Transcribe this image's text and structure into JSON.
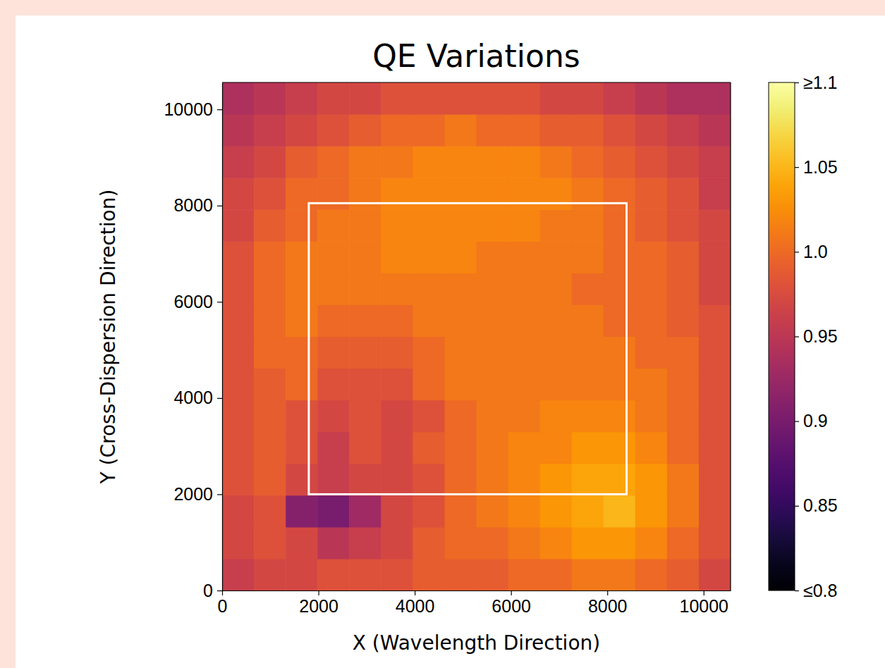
{
  "chart_data": {
    "type": "heatmap",
    "title": "QE Variations",
    "x_label": "X (Wavelength Direction)",
    "y_label": "Y (Cross-Dispersion Direction)",
    "xlim": [
      0,
      10560
    ],
    "ylim": [
      0,
      10560
    ],
    "xticks": [
      0,
      2000,
      4000,
      6000,
      8000,
      10000
    ],
    "yticks": [
      0,
      2000,
      4000,
      6000,
      8000,
      10000
    ],
    "x_edges": [
      0,
      660,
      1320,
      1980,
      2640,
      3300,
      3960,
      4620,
      5280,
      5940,
      6600,
      7260,
      7920,
      8580,
      9240,
      9900,
      10560
    ],
    "y_edges": [
      0,
      660,
      1320,
      1980,
      2640,
      3300,
      3960,
      4620,
      5280,
      5940,
      6600,
      7260,
      7920,
      8580,
      9240,
      9900,
      10560
    ],
    "z": [
      [
        0.96,
        0.97,
        0.97,
        0.98,
        0.98,
        0.98,
        0.99,
        0.99,
        0.99,
        1.0,
        1.0,
        1.01,
        1.01,
        1.0,
        0.99,
        0.97
      ],
      [
        0.97,
        0.98,
        0.97,
        0.95,
        0.96,
        0.97,
        0.99,
        1.0,
        1.0,
        1.01,
        1.02,
        1.03,
        1.03,
        1.02,
        1.0,
        0.98
      ],
      [
        0.97,
        0.98,
        0.91,
        0.9,
        0.93,
        0.97,
        0.98,
        1.0,
        1.01,
        1.02,
        1.03,
        1.04,
        1.05,
        1.03,
        1.01,
        0.98
      ],
      [
        0.98,
        0.99,
        0.97,
        0.96,
        0.97,
        0.97,
        0.98,
        1.0,
        1.01,
        1.02,
        1.03,
        1.04,
        1.04,
        1.03,
        1.01,
        0.98
      ],
      [
        0.98,
        0.99,
        0.98,
        0.96,
        0.98,
        0.97,
        0.99,
        1.0,
        1.01,
        1.02,
        1.02,
        1.03,
        1.03,
        1.02,
        1.0,
        0.98
      ],
      [
        0.98,
        0.99,
        0.98,
        0.97,
        0.98,
        0.97,
        0.98,
        1.0,
        1.01,
        1.01,
        1.02,
        1.02,
        1.02,
        1.01,
        1.0,
        0.98
      ],
      [
        0.98,
        0.99,
        1.0,
        0.98,
        0.98,
        0.98,
        1.0,
        1.01,
        1.01,
        1.01,
        1.01,
        1.01,
        1.01,
        1.01,
        1.0,
        0.98
      ],
      [
        0.98,
        1.0,
        1.0,
        0.99,
        0.99,
        0.99,
        1.0,
        1.01,
        1.01,
        1.01,
        1.01,
        1.01,
        1.01,
        1.0,
        1.0,
        0.98
      ],
      [
        0.98,
        1.0,
        1.01,
        1.0,
        1.0,
        1.0,
        1.01,
        1.01,
        1.01,
        1.01,
        1.01,
        1.01,
        1.0,
        1.0,
        0.99,
        0.98
      ],
      [
        0.98,
        1.0,
        1.01,
        1.01,
        1.01,
        1.01,
        1.01,
        1.01,
        1.01,
        1.01,
        1.01,
        1.0,
        1.0,
        1.0,
        0.99,
        0.97
      ],
      [
        0.98,
        1.0,
        1.01,
        1.01,
        1.01,
        1.02,
        1.02,
        1.02,
        1.01,
        1.01,
        1.01,
        1.01,
        1.0,
        1.0,
        0.99,
        0.97
      ],
      [
        0.97,
        0.99,
        1.0,
        1.01,
        1.01,
        1.02,
        1.02,
        1.02,
        1.02,
        1.02,
        1.01,
        1.01,
        1.0,
        0.99,
        0.98,
        0.97
      ],
      [
        0.97,
        0.98,
        1.0,
        1.0,
        1.01,
        1.02,
        1.02,
        1.02,
        1.02,
        1.02,
        1.02,
        1.01,
        1.0,
        0.99,
        0.98,
        0.96
      ],
      [
        0.96,
        0.97,
        0.99,
        1.0,
        1.01,
        1.01,
        1.02,
        1.02,
        1.02,
        1.02,
        1.01,
        1.0,
        0.99,
        0.98,
        0.97,
        0.96
      ],
      [
        0.95,
        0.96,
        0.97,
        0.98,
        0.99,
        1.0,
        1.0,
        1.01,
        1.0,
        1.0,
        0.99,
        0.99,
        0.98,
        0.97,
        0.96,
        0.95
      ],
      [
        0.94,
        0.95,
        0.96,
        0.97,
        0.97,
        0.98,
        0.98,
        0.98,
        0.98,
        0.98,
        0.97,
        0.97,
        0.96,
        0.95,
        0.94,
        0.94
      ]
    ],
    "region": {
      "x0": 1800,
      "x1": 8400,
      "y0": 2000,
      "y1": 8050
    },
    "colorbar": {
      "range": [
        0.8,
        1.1
      ],
      "ticks": [
        {
          "value": 0.8,
          "label": "≤0.8"
        },
        0.85,
        0.9,
        0.95,
        {
          "value": 1,
          "label": "1.0"
        },
        1.05,
        {
          "value": 1.1,
          "label": "≥1.1"
        }
      ]
    }
  }
}
